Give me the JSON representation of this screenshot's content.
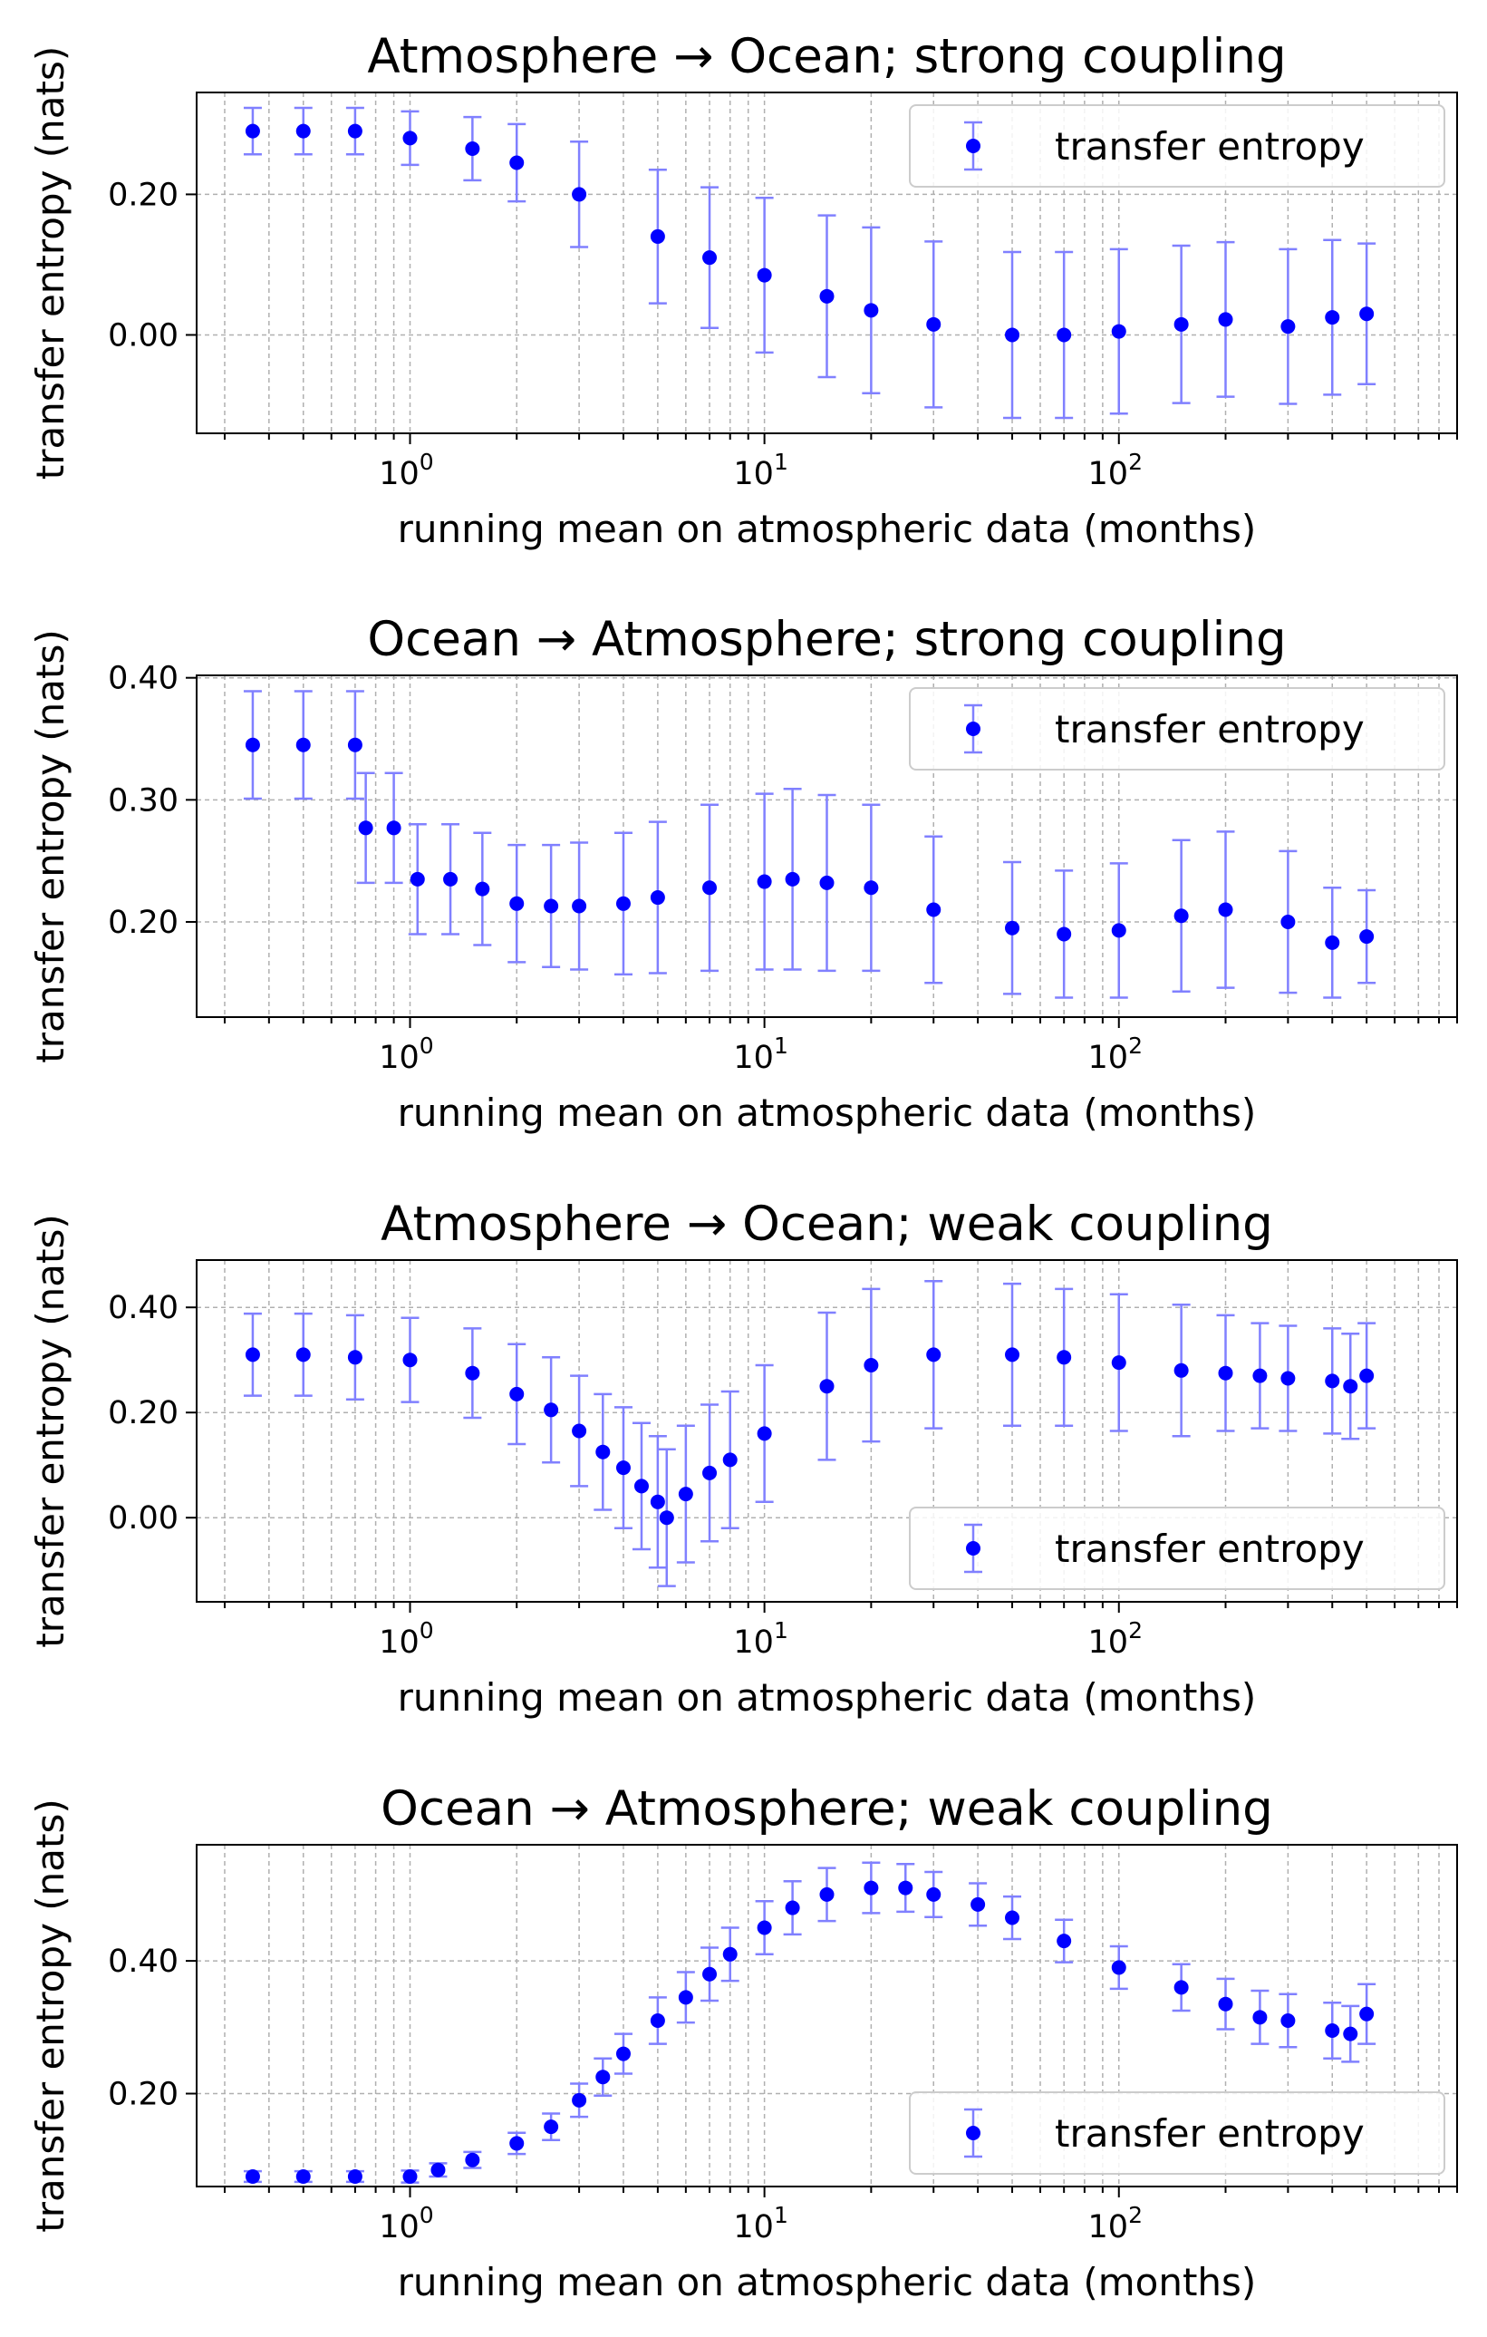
{
  "colors": {
    "marker": "#0000ff",
    "errorbar": "#8080ff",
    "grid": "#b0b0b0",
    "legend_border": "#cccccc"
  },
  "chart_data": [
    {
      "type": "scatter",
      "title": "Atmosphere → Ocean; strong coupling",
      "xlabel": "running mean on atmospheric data (months)",
      "ylabel": "transfer entropy (nats)",
      "xscale": "log",
      "xlim": [
        0.25,
        900
      ],
      "ylim": [
        -0.14,
        0.345
      ],
      "yticks": [
        0.0,
        0.2
      ],
      "ytick_labels": [
        "0.00",
        "0.20"
      ],
      "xticks": [
        1,
        10,
        100
      ],
      "xtick_labels": [
        {
          "base": "10",
          "exp": "0"
        },
        {
          "base": "10",
          "exp": "1"
        },
        {
          "base": "10",
          "exp": "2"
        }
      ],
      "grid": true,
      "legend": {
        "label": "transfer entropy",
        "placement": "upper right"
      },
      "series": [
        {
          "x": [
            0.36,
            0.5,
            0.7,
            1,
            1.5,
            2,
            3,
            5,
            7,
            10,
            15,
            20,
            30,
            50,
            70,
            100,
            150,
            200,
            300,
            400,
            500
          ],
          "y": [
            0.29,
            0.29,
            0.29,
            0.28,
            0.265,
            0.245,
            0.2,
            0.14,
            0.11,
            0.085,
            0.055,
            0.035,
            0.015,
            0.0,
            0.0,
            0.005,
            0.015,
            0.022,
            0.012,
            0.025,
            0.03
          ],
          "err": [
            0.033,
            0.033,
            0.033,
            0.038,
            0.045,
            0.055,
            0.075,
            0.095,
            0.1,
            0.11,
            0.115,
            0.118,
            0.118,
            0.118,
            0.118,
            0.117,
            0.112,
            0.11,
            0.11,
            0.11,
            0.1
          ]
        }
      ]
    },
    {
      "type": "scatter",
      "title": "Ocean → Atmosphere; strong coupling",
      "xlabel": "running mean on atmospheric data (months)",
      "ylabel": "transfer entropy (nats)",
      "xscale": "log",
      "xlim": [
        0.25,
        900
      ],
      "ylim": [
        0.122,
        0.402
      ],
      "yticks": [
        0.2,
        0.3,
        0.4
      ],
      "ytick_labels": [
        "0.20",
        "0.30",
        "0.40"
      ],
      "xticks": [
        1,
        10,
        100
      ],
      "xtick_labels": [
        {
          "base": "10",
          "exp": "0"
        },
        {
          "base": "10",
          "exp": "1"
        },
        {
          "base": "10",
          "exp": "2"
        }
      ],
      "grid": true,
      "legend": {
        "label": "transfer entropy",
        "placement": "upper right"
      },
      "series": [
        {
          "x": [
            0.36,
            0.5,
            0.7,
            0.75,
            0.9,
            1.05,
            1.3,
            1.6,
            2,
            2.5,
            3,
            4,
            5,
            7,
            10,
            12,
            15,
            20,
            30,
            50,
            70,
            100,
            150,
            200,
            300,
            400,
            500
          ],
          "y": [
            0.345,
            0.345,
            0.345,
            0.277,
            0.277,
            0.235,
            0.235,
            0.227,
            0.215,
            0.213,
            0.213,
            0.215,
            0.22,
            0.228,
            0.233,
            0.235,
            0.232,
            0.228,
            0.21,
            0.195,
            0.19,
            0.193,
            0.205,
            0.21,
            0.2,
            0.183,
            0.188
          ],
          "err": [
            0.044,
            0.044,
            0.044,
            0.045,
            0.045,
            0.045,
            0.045,
            0.046,
            0.048,
            0.05,
            0.052,
            0.058,
            0.062,
            0.068,
            0.072,
            0.074,
            0.072,
            0.068,
            0.06,
            0.054,
            0.052,
            0.055,
            0.062,
            0.064,
            0.058,
            0.045,
            0.038
          ]
        }
      ]
    },
    {
      "type": "scatter",
      "title": "Atmosphere → Ocean; weak coupling",
      "xlabel": "running mean on atmospheric data (months)",
      "ylabel": "transfer entropy (nats)",
      "xscale": "log",
      "xlim": [
        0.25,
        900
      ],
      "ylim": [
        -0.16,
        0.49
      ],
      "yticks": [
        0.0,
        0.2,
        0.4
      ],
      "ytick_labels": [
        "0.00",
        "0.20",
        "0.40"
      ],
      "xticks": [
        1,
        10,
        100
      ],
      "xtick_labels": [
        {
          "base": "10",
          "exp": "0"
        },
        {
          "base": "10",
          "exp": "1"
        },
        {
          "base": "10",
          "exp": "2"
        }
      ],
      "grid": true,
      "legend": {
        "label": "transfer entropy",
        "placement": "lower right"
      },
      "series": [
        {
          "x": [
            0.36,
            0.5,
            0.7,
            1,
            1.5,
            2,
            2.5,
            3,
            3.5,
            4,
            4.5,
            5,
            5.3,
            6,
            7,
            8,
            10,
            15,
            20,
            30,
            50,
            70,
            100,
            150,
            200,
            250,
            300,
            400,
            450,
            500
          ],
          "y": [
            0.31,
            0.31,
            0.305,
            0.3,
            0.275,
            0.235,
            0.205,
            0.165,
            0.125,
            0.095,
            0.06,
            0.03,
            0.0,
            0.045,
            0.085,
            0.11,
            0.16,
            0.25,
            0.29,
            0.31,
            0.31,
            0.305,
            0.295,
            0.28,
            0.275,
            0.27,
            0.265,
            0.26,
            0.25,
            0.27
          ],
          "err": [
            0.078,
            0.078,
            0.08,
            0.08,
            0.085,
            0.095,
            0.1,
            0.105,
            0.11,
            0.115,
            0.12,
            0.125,
            0.13,
            0.13,
            0.13,
            0.13,
            0.13,
            0.14,
            0.145,
            0.14,
            0.135,
            0.13,
            0.13,
            0.125,
            0.11,
            0.1,
            0.1,
            0.1,
            0.1,
            0.1
          ]
        }
      ]
    },
    {
      "type": "scatter",
      "title": "Ocean → Atmosphere; weak coupling",
      "xlabel": "running mean on atmospheric data (months)",
      "ylabel": "transfer entropy (nats)",
      "xscale": "log",
      "xlim": [
        0.25,
        900
      ],
      "ylim": [
        0.06,
        0.575
      ],
      "yticks": [
        0.2,
        0.4
      ],
      "ytick_labels": [
        "0.20",
        "0.40"
      ],
      "xticks": [
        1,
        10,
        100
      ],
      "xtick_labels": [
        {
          "base": "10",
          "exp": "0"
        },
        {
          "base": "10",
          "exp": "1"
        },
        {
          "base": "10",
          "exp": "2"
        }
      ],
      "grid": true,
      "legend": {
        "label": "transfer entropy",
        "placement": "lower right"
      },
      "series": [
        {
          "x": [
            0.36,
            0.5,
            0.7,
            1,
            1.2,
            1.5,
            2,
            2.5,
            3,
            3.5,
            4,
            5,
            6,
            7,
            8,
            10,
            12,
            15,
            20,
            25,
            30,
            40,
            50,
            70,
            100,
            150,
            200,
            250,
            300,
            400,
            450,
            500
          ],
          "y": [
            0.075,
            0.075,
            0.075,
            0.075,
            0.085,
            0.1,
            0.125,
            0.15,
            0.19,
            0.225,
            0.26,
            0.31,
            0.345,
            0.38,
            0.41,
            0.45,
            0.48,
            0.5,
            0.51,
            0.51,
            0.5,
            0.485,
            0.465,
            0.43,
            0.39,
            0.36,
            0.335,
            0.315,
            0.31,
            0.295,
            0.29,
            0.32
          ],
          "err": [
            0.008,
            0.008,
            0.008,
            0.009,
            0.01,
            0.012,
            0.016,
            0.02,
            0.025,
            0.028,
            0.03,
            0.035,
            0.038,
            0.04,
            0.04,
            0.04,
            0.04,
            0.04,
            0.038,
            0.036,
            0.034,
            0.032,
            0.032,
            0.032,
            0.032,
            0.035,
            0.038,
            0.04,
            0.04,
            0.042,
            0.042,
            0.045
          ]
        }
      ]
    }
  ]
}
